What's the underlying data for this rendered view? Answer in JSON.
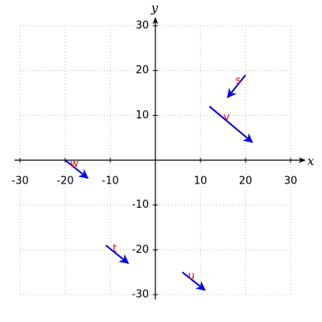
{
  "chart_data": {
    "type": "quiver",
    "xlabel": "x",
    "ylabel": "y",
    "xlim": [
      -30,
      30
    ],
    "ylim": [
      -30,
      30
    ],
    "xticks": [
      -30,
      -20,
      -10,
      10,
      20,
      30
    ],
    "yticks": [
      -30,
      -20,
      -10,
      10,
      20,
      30
    ],
    "grid": true,
    "color": "#0000ee",
    "label_color": "#ee0000",
    "vectors": {
      "labels": [
        "s",
        "v",
        "w",
        "t",
        "u"
      ],
      "x": [
        20,
        12,
        -20,
        -11,
        6
      ],
      "y": [
        19,
        12,
        0,
        -19,
        -25
      ],
      "u": [
        -4,
        9.5,
        5,
        5,
        5
      ],
      "v": [
        -5,
        -8,
        -4,
        -4,
        -4
      ]
    }
  }
}
